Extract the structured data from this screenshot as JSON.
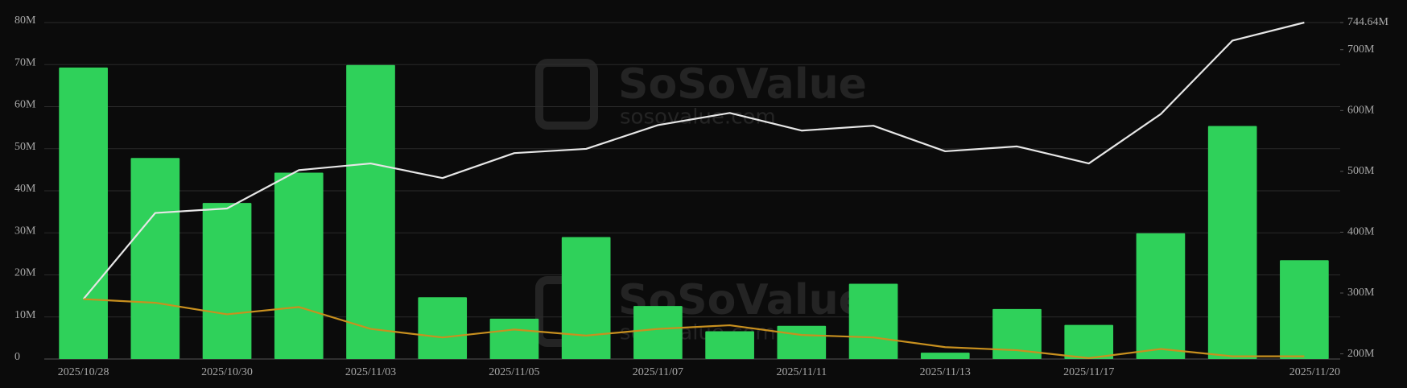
{
  "chart_data": {
    "type": "bar",
    "categories": [
      "2025/10/28",
      null,
      "2025/10/30",
      null,
      "2025/11/03",
      null,
      "2025/11/05",
      null,
      "2025/11/07",
      null,
      "2025/11/11",
      null,
      "2025/11/13",
      null,
      "2025/11/17",
      null,
      null,
      "2025/11/20"
    ],
    "series": [
      {
        "type": "bar",
        "color": "#2fd15a",
        "values": [
          69.3,
          47.8,
          37.1,
          44.3,
          69.9,
          14.7,
          9.6,
          29.0,
          12.6,
          6.6,
          7.9,
          17.9,
          1.5,
          11.9,
          8.1,
          29.9,
          55.4,
          23.5
        ]
      },
      {
        "type": "line",
        "axis": "y2",
        "color": "#e6e6e6",
        "values": [
          290,
          431.6,
          439,
          502,
          513,
          489,
          530,
          537,
          576,
          596,
          567,
          575,
          533,
          541,
          513,
          594,
          715,
          744.64
        ]
      },
      {
        "type": "line",
        "axis": "y2",
        "color": "#c8901f",
        "values": [
          290,
          284,
          265,
          277,
          241,
          227,
          240,
          230,
          241,
          247,
          231,
          227,
          211,
          206,
          193,
          208,
          196,
          196
        ]
      }
    ],
    "ylim": [
      0,
      80
    ],
    "yticks": [
      {
        "value": 0,
        "label": "0"
      },
      {
        "value": 10,
        "label": "10M"
      },
      {
        "value": 20,
        "label": "20M"
      },
      {
        "value": 30,
        "label": "30M"
      },
      {
        "value": 40,
        "label": "40M"
      },
      {
        "value": 50,
        "label": "50M"
      },
      {
        "value": 60,
        "label": "60M"
      },
      {
        "value": 70,
        "label": "70M"
      },
      {
        "value": 80,
        "label": "80M"
      }
    ],
    "y2lim": [
      191.5,
      744.64
    ],
    "y2ticks": [
      {
        "value": 200,
        "label": "200M"
      },
      {
        "value": 300,
        "label": "300M"
      },
      {
        "value": 400,
        "label": "400M"
      },
      {
        "value": 500,
        "label": "500M"
      },
      {
        "value": 600,
        "label": "600M"
      },
      {
        "value": 700,
        "label": "700M"
      },
      {
        "value": 744.64,
        "label": "744.64M"
      }
    ],
    "grid": true,
    "watermark": {
      "brand": "SoSoValue",
      "url": "sosovalue.com"
    }
  }
}
